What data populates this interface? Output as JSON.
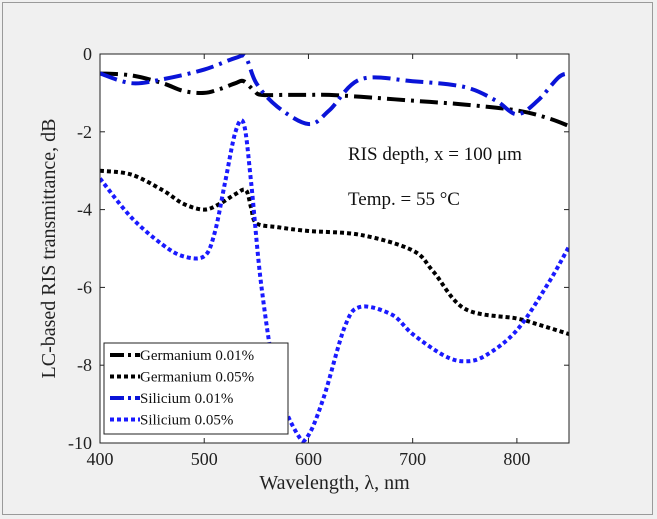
{
  "chart_data": {
    "type": "line",
    "xlabel": "Wavelength, λ, nm",
    "ylabel": "LC-based RIS transmittance, dB",
    "xlim": [
      400,
      850
    ],
    "ylim": [
      -10,
      0
    ],
    "xticks": [
      400,
      500,
      600,
      700,
      800
    ],
    "yticks": [
      0,
      -2,
      -4,
      -6,
      -8,
      -10
    ],
    "grid": false,
    "legend_position": "bottom-left",
    "annotations": {
      "depth": {
        "text": "RIS depth, x = 100 μm"
      },
      "temp": {
        "text": "Temp. = 55 °C"
      }
    },
    "series": [
      {
        "name": "Germanium 0.01%",
        "color": "#000000",
        "style": "dashdot",
        "x": [
          400,
          430,
          460,
          480,
          500,
          515,
          530,
          538,
          548,
          555,
          580,
          600,
          620,
          650,
          700,
          750,
          800,
          830,
          850
        ],
        "y": [
          -0.5,
          -0.55,
          -0.75,
          -0.95,
          -1.0,
          -0.9,
          -0.75,
          -0.7,
          -0.95,
          -1.05,
          -1.05,
          -1.05,
          -1.05,
          -1.1,
          -1.2,
          -1.3,
          -1.45,
          -1.65,
          -1.85
        ]
      },
      {
        "name": "Germanium 0.05%",
        "color": "#000000",
        "style": "dotted",
        "x": [
          400,
          430,
          460,
          480,
          500,
          515,
          530,
          540,
          545,
          550,
          570,
          600,
          650,
          700,
          720,
          750,
          800,
          820,
          850
        ],
        "y": [
          -3.0,
          -3.1,
          -3.5,
          -3.85,
          -4.0,
          -3.85,
          -3.6,
          -3.5,
          -3.95,
          -4.35,
          -4.45,
          -4.55,
          -4.65,
          -5.05,
          -5.6,
          -6.55,
          -6.8,
          -6.95,
          -7.2
        ]
      },
      {
        "name": "Silicium 0.01%",
        "color": "#0a14d8",
        "style": "dashdot",
        "x": [
          400,
          430,
          460,
          500,
          530,
          540,
          550,
          570,
          600,
          620,
          650,
          700,
          750,
          780,
          800,
          820,
          840,
          850
        ],
        "y": [
          -0.5,
          -0.75,
          -0.65,
          -0.4,
          -0.1,
          -0.1,
          -0.75,
          -1.35,
          -1.8,
          -1.45,
          -0.65,
          -0.7,
          -0.85,
          -1.2,
          -1.55,
          -1.2,
          -0.6,
          -0.5
        ]
      },
      {
        "name": "Silicium 0.05%",
        "color": "#1a1aff",
        "style": "dotted",
        "x": [
          400,
          430,
          460,
          480,
          500,
          510,
          520,
          530,
          538,
          545,
          555,
          570,
          590,
          600,
          615,
          635,
          650,
          680,
          700,
          730,
          750,
          770,
          800,
          830,
          850
        ],
        "y": [
          -3.2,
          -4.2,
          -4.9,
          -5.2,
          -5.2,
          -4.6,
          -3.3,
          -2.0,
          -1.8,
          -3.3,
          -6.0,
          -8.5,
          -9.8,
          -9.8,
          -8.8,
          -7.0,
          -6.5,
          -6.7,
          -7.2,
          -7.75,
          -7.9,
          -7.75,
          -7.1,
          -5.9,
          -4.95
        ]
      }
    ]
  }
}
